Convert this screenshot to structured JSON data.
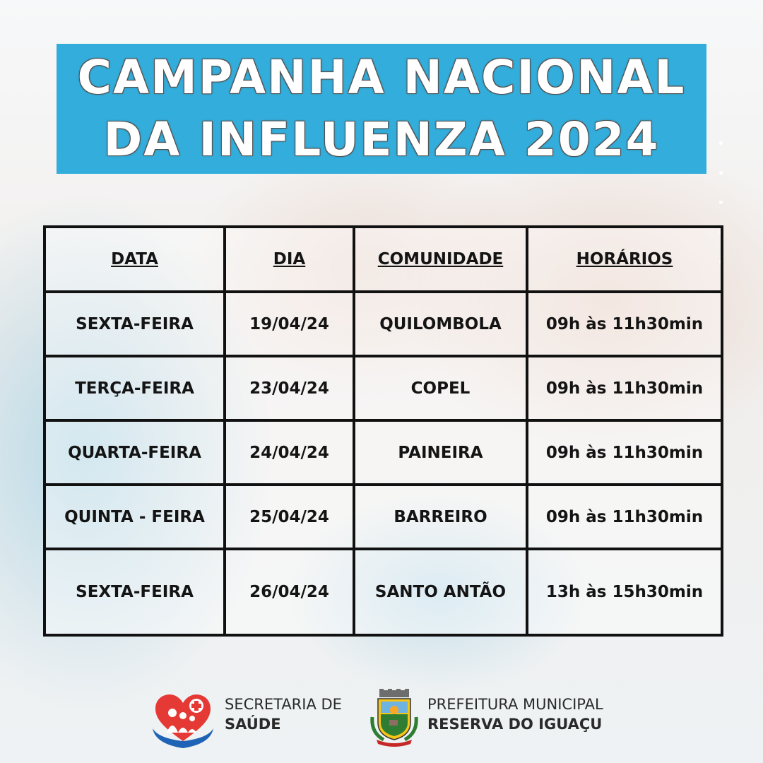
{
  "title": {
    "line1": "CAMPANHA NACIONAL",
    "line2": "DA INFLUENZA 2024"
  },
  "table": {
    "headers": [
      "DATA",
      "DIA",
      "COMUNIDADE",
      "HORÁRIOS"
    ],
    "rows": [
      [
        "SEXTA-FEIRA",
        "19/04/24",
        "QUILOMBOLA",
        "09h às 11h30min"
      ],
      [
        "TERÇA-FEIRA",
        "23/04/24",
        "COPEL",
        "09h às 11h30min"
      ],
      [
        "QUARTA-FEIRA",
        "24/04/24",
        "PAINEIRA",
        "09h às 11h30min"
      ],
      [
        "QUINTA - FEIRA",
        "25/04/24",
        "BARREIRO",
        "09h às 11h30min"
      ],
      [
        "SEXTA-FEIRA",
        "26/04/24",
        "SANTO ANTÃO",
        "13h às 15h30min"
      ]
    ]
  },
  "footer": {
    "saude": {
      "line1": "SECRETARIA DE",
      "line2": "SAÚDE",
      "icon": "heart-family-icon"
    },
    "prefeitura": {
      "line1": "PREFEITURA MUNICIPAL",
      "line2": "RESERVA DO IGUAÇU",
      "icon": "municipal-crest-icon"
    }
  },
  "colors": {
    "accent": "#33aedc",
    "heart": "#e53935",
    "hands": "#1e63b5"
  }
}
